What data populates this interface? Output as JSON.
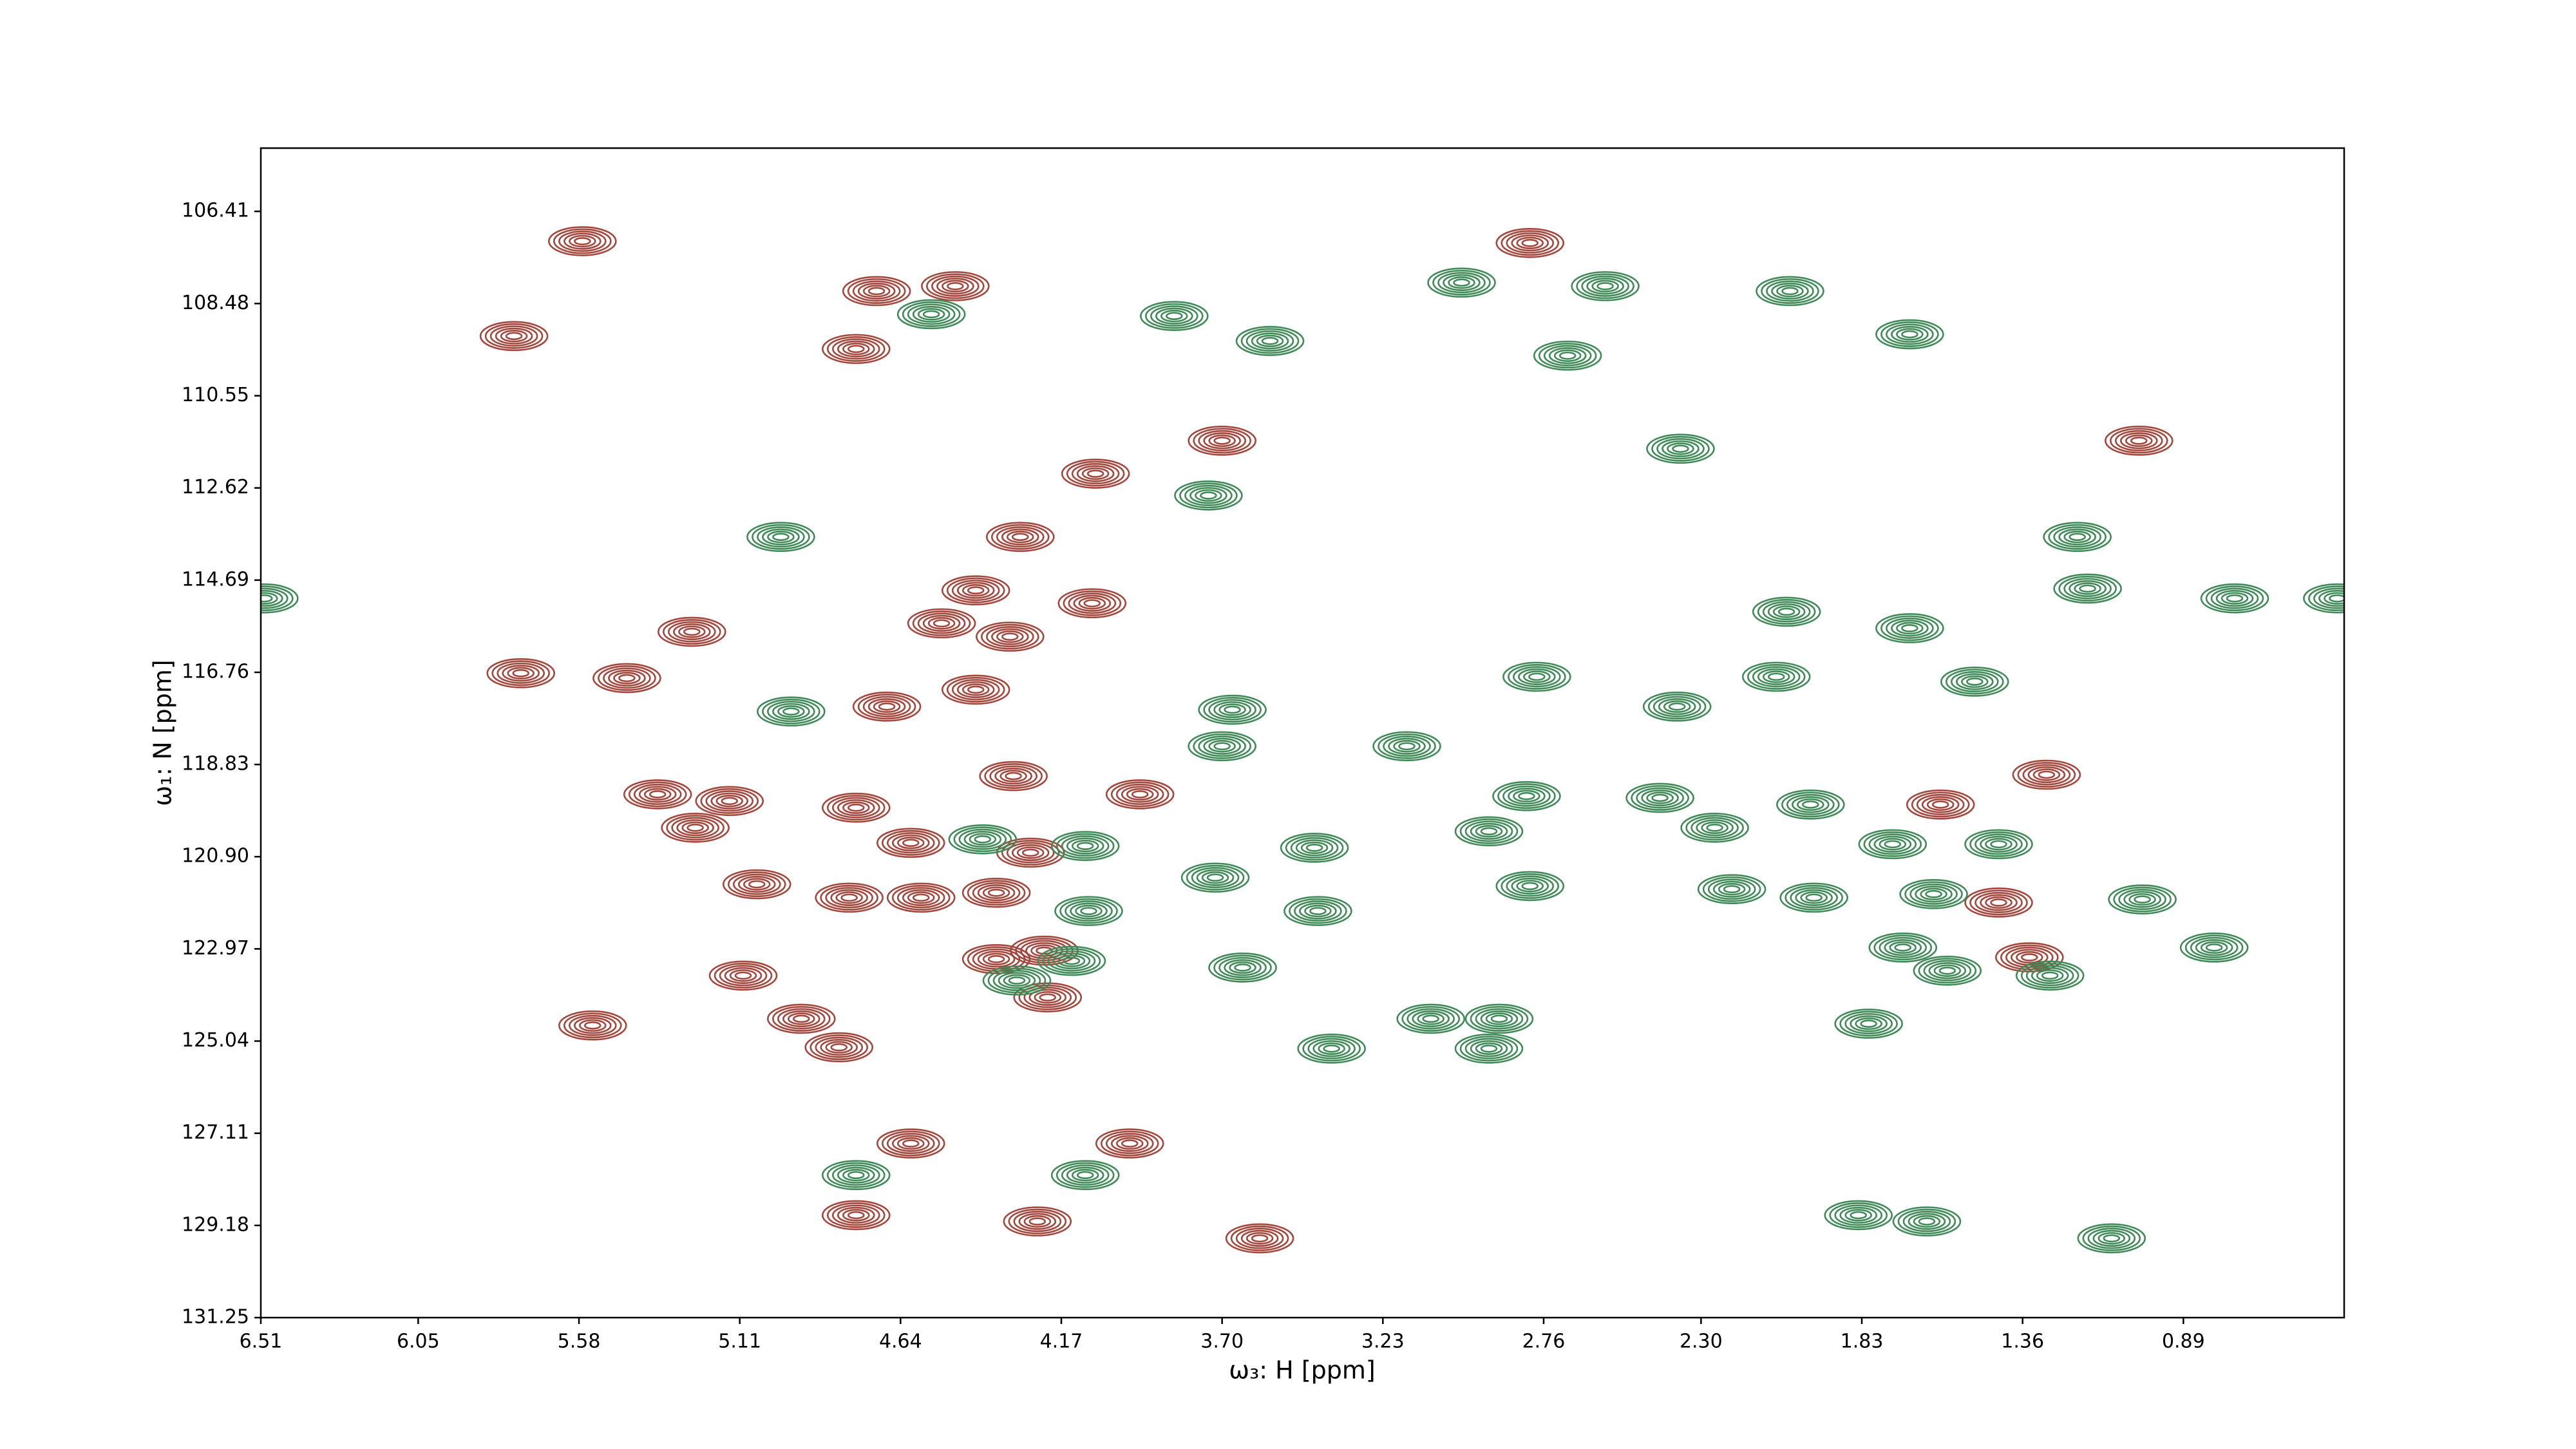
{
  "chart_data": {
    "type": "contour",
    "x_label": "ω₃: H [ppm]",
    "y_label": "ω₁: N [ppm]",
    "xlim": [
      6.51,
      0.42
    ],
    "ylim": [
      131.25,
      104.99
    ],
    "xticks": [
      6.51,
      6.05,
      5.58,
      5.11,
      4.64,
      4.17,
      {
        "value": 3.7,
        "label": "3.70"
      },
      3.23,
      2.76,
      {
        "value": 2.3,
        "label": "2.30"
      },
      1.83,
      1.36,
      0.89
    ],
    "yticks": [
      106.41,
      108.48,
      110.55,
      112.62,
      114.69,
      116.76,
      118.83,
      {
        "value": 120.9,
        "label": "120.90"
      },
      122.97,
      125.04,
      127.11,
      129.18,
      131.25
    ],
    "series": [
      {
        "color": "#a4463b",
        "x": [
          5.57,
          5.77,
          2.8,
          4.48,
          4.71,
          4.77,
          3.7,
          1.02,
          4.07,
          4.29,
          4.42,
          4.08,
          4.52,
          4.32,
          5.25,
          5.75,
          5.44,
          4.42,
          4.68,
          4.31,
          3.94,
          4.77,
          5.35,
          5.14,
          5.24,
          5.06,
          4.58,
          4.79,
          4.36,
          4.26,
          4.61,
          4.36,
          4.22,
          5.1,
          4.21,
          5.54,
          4.93,
          4.82,
          4.61,
          3.97,
          4.77,
          4.24,
          3.59,
          1.29,
          1.6,
          1.43,
          1.34
        ],
        "y": [
          107.08,
          109.21,
          107.12,
          108.09,
          108.2,
          109.5,
          111.56,
          111.56,
          112.3,
          113.72,
          114.92,
          115.21,
          115.66,
          115.96,
          115.85,
          116.78,
          116.89,
          117.15,
          117.53,
          119.09,
          119.5,
          119.8,
          119.5,
          119.65,
          120.25,
          121.52,
          121.82,
          121.82,
          121.71,
          120.81,
          120.59,
          123.2,
          123.01,
          123.57,
          124.06,
          124.69,
          124.54,
          125.18,
          127.34,
          127.34,
          128.95,
          129.09,
          129.47,
          119.06,
          119.73,
          121.93,
          123.16
        ]
      },
      {
        "color": "#3f8a57",
        "x": [
          4.55,
          3.84,
          3.56,
          3.0,
          2.58,
          2.69,
          2.04,
          1.69,
          2.36,
          3.74,
          4.99,
          6.5,
          1.2,
          1.17,
          0.74,
          0.44,
          2.05,
          1.69,
          1.5,
          2.78,
          2.37,
          2.08,
          3.67,
          4.96,
          3.7,
          3.16,
          2.81,
          2.42,
          2.26,
          1.98,
          4.4,
          4.1,
          3.43,
          1.74,
          1.43,
          2.92,
          3.72,
          2.8,
          2.21,
          1.97,
          1.62,
          1.01,
          4.09,
          3.42,
          1.71,
          1.58,
          0.8,
          4.14,
          4.3,
          3.64,
          1.28,
          3.09,
          2.89,
          2.92,
          3.38,
          1.81,
          4.77,
          4.1,
          1.84,
          1.64,
          1.1
        ],
        "y": [
          108.72,
          108.76,
          109.32,
          108.01,
          108.09,
          109.65,
          108.2,
          109.17,
          111.74,
          112.79,
          113.72,
          115.1,
          113.72,
          114.88,
          115.1,
          115.1,
          115.4,
          115.77,
          116.97,
          116.86,
          117.53,
          116.86,
          117.6,
          117.64,
          118.42,
          118.42,
          119.54,
          119.58,
          120.25,
          119.73,
          120.51,
          120.66,
          120.7,
          120.62,
          120.62,
          120.33,
          121.37,
          121.56,
          121.63,
          121.82,
          121.74,
          121.86,
          122.12,
          122.12,
          122.94,
          123.46,
          122.94,
          123.24,
          123.68,
          123.39,
          123.57,
          124.54,
          124.54,
          125.21,
          125.21,
          124.65,
          128.05,
          128.05,
          128.95,
          129.09,
          129.47
        ]
      }
    ]
  }
}
